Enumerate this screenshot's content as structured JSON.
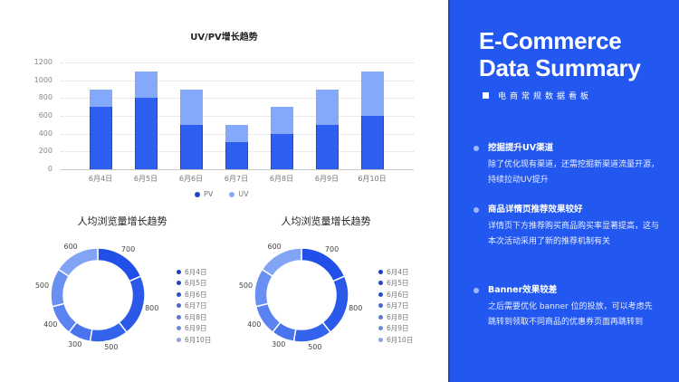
{
  "bar_chart": {
    "title": "UV/PV增长趋势",
    "legend": [
      {
        "label": "PV",
        "color": "#2245c8"
      },
      {
        "label": "UV",
        "color": "#84a9fb"
      }
    ]
  },
  "donut_left": {
    "title": "人均浏览量增长趋势"
  },
  "donut_right": {
    "title": "人均浏览量增长趋势"
  },
  "panel": {
    "title_line1": "E-Commerce",
    "title_line2": "Data Summary",
    "subtitle": "电商常规数据看板",
    "points": [
      {
        "title": "挖掘提升UV渠道",
        "body": "除了优化现有渠道，还需挖掘新渠道流量开源，持续拉动UV提升"
      },
      {
        "title": "商品详情页推荐效果较好",
        "body": "详情页下方推荐购买商品购买率显著提高，这与本次活动采用了新的推荐机制有关"
      },
      {
        "title": "Banner效果较差",
        "body": "之后需要优化 banner 位的投放，可以考虑先跳转到领取不同商品的优惠券页面再跳转到"
      }
    ],
    "colors": {
      "background": "#2358f0",
      "bullet": "#9fb9ff"
    }
  },
  "chart_data": [
    {
      "type": "bar",
      "stacked": true,
      "title": "UV/PV增长趋势",
      "categories": [
        "6月4日",
        "6月5日",
        "6月6日",
        "6月7日",
        "6月8日",
        "6月9日",
        "6月10日"
      ],
      "series": [
        {
          "name": "PV",
          "values": [
            700,
            800,
            500,
            300,
            400,
            500,
            600
          ],
          "color": "#2f5ff0"
        },
        {
          "name": "UV",
          "values": [
            200,
            300,
            400,
            200,
            300,
            400,
            500
          ],
          "color": "#84a9fb"
        }
      ],
      "yticks": [
        0,
        200,
        400,
        600,
        800,
        1000,
        1200
      ],
      "ylim": [
        0,
        1200
      ],
      "xlabel": "",
      "ylabel": "",
      "grid": true,
      "legend_position": "bottom"
    },
    {
      "type": "pie",
      "donut": true,
      "title": "人均浏览量增长趋势",
      "categories": [
        "6月4日",
        "6月5日",
        "6月6日",
        "6月7日",
        "6月8日",
        "6月9日",
        "6月10日"
      ],
      "values": [
        700,
        800,
        500,
        300,
        400,
        500,
        600
      ],
      "colors": [
        "#2150e8",
        "#2a59ea",
        "#3362ec",
        "#4a74ee",
        "#5a82f0",
        "#6a8ff2",
        "#82a4f5"
      ],
      "legend_position": "right"
    },
    {
      "type": "pie",
      "donut": true,
      "title": "人均浏览量增长趋势",
      "categories": [
        "6月4日",
        "6月5日",
        "6月6日",
        "6月7日",
        "6月8日",
        "6月9日",
        "6月10日"
      ],
      "values": [
        700,
        800,
        500,
        300,
        400,
        500,
        600
      ],
      "colors": [
        "#2150e8",
        "#2a59ea",
        "#3362ec",
        "#4a74ee",
        "#5a82f0",
        "#6a8ff2",
        "#82a4f5"
      ],
      "legend_position": "right"
    }
  ]
}
